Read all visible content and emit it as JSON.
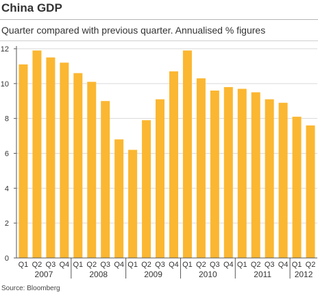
{
  "header": {
    "title": "China GDP",
    "subtitle": "Quarter compared with previous quarter. Annualised % figures"
  },
  "footer": {
    "source": "Source: Bloomberg"
  },
  "colors": {
    "bar": "#fbb731",
    "axis": "#555555",
    "grid": "#d9d9d9"
  },
  "chart_data": {
    "type": "bar",
    "title": "China GDP",
    "subtitle": "Quarter compared with previous quarter. Annualised % figures",
    "categories": [
      "Q1",
      "Q2",
      "Q3",
      "Q4",
      "Q1",
      "Q2",
      "Q3",
      "Q4",
      "Q1",
      "Q2",
      "Q3",
      "Q4",
      "Q1",
      "Q2",
      "Q3",
      "Q4",
      "Q1",
      "Q2",
      "Q3",
      "Q4",
      "Q1",
      "Q2"
    ],
    "years": [
      {
        "label": "2007",
        "start": 0,
        "count": 4
      },
      {
        "label": "2008",
        "start": 4,
        "count": 4
      },
      {
        "label": "2009",
        "start": 8,
        "count": 4
      },
      {
        "label": "2010",
        "start": 12,
        "count": 4
      },
      {
        "label": "2011",
        "start": 16,
        "count": 4
      },
      {
        "label": "2012",
        "start": 20,
        "count": 2
      }
    ],
    "values": [
      11.1,
      11.9,
      11.5,
      11.2,
      10.6,
      10.1,
      9.0,
      6.8,
      6.2,
      7.9,
      9.1,
      10.7,
      11.9,
      10.3,
      9.6,
      9.8,
      9.7,
      9.5,
      9.1,
      8.9,
      8.1,
      7.6
    ],
    "ylim": [
      0,
      12
    ],
    "yticks": [
      "0",
      "2",
      "4",
      "6",
      "8",
      "10",
      "12"
    ],
    "grid": true,
    "legend": "none"
  }
}
